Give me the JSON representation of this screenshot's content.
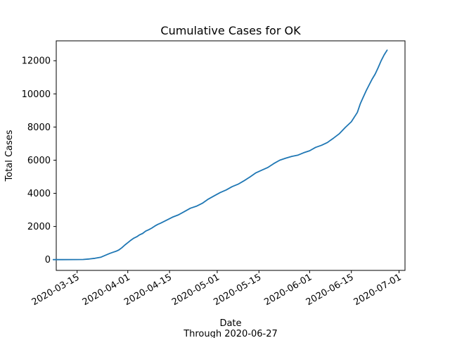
{
  "chart_data": {
    "type": "line",
    "title": "Cumulative Cases for OK",
    "xlabel": "Date",
    "xlabel_sub": "Through 2020-06-27",
    "ylabel": "Total Cases",
    "xlim": [
      "2020-03-08",
      "2020-07-03"
    ],
    "ylim": [
      -650,
      13200
    ],
    "x_ticks": [
      "2020-03-15",
      "2020-04-01",
      "2020-04-15",
      "2020-05-01",
      "2020-05-15",
      "2020-06-01",
      "2020-06-15",
      "2020-07-01"
    ],
    "y_ticks": [
      0,
      2000,
      4000,
      6000,
      8000,
      10000,
      12000
    ],
    "grid": false,
    "line_color": "#1f77b4",
    "series": [
      {
        "x": [
          "2020-03-07",
          "2020-03-10",
          "2020-03-14",
          "2020-03-17",
          "2020-03-19",
          "2020-03-21",
          "2020-03-23",
          "2020-03-25",
          "2020-03-26",
          "2020-03-27",
          "2020-03-28",
          "2020-03-29",
          "2020-03-30",
          "2020-03-31",
          "2020-04-01",
          "2020-04-02",
          "2020-04-03",
          "2020-04-04",
          "2020-04-05",
          "2020-04-06",
          "2020-04-07",
          "2020-04-08",
          "2020-04-09",
          "2020-04-10",
          "2020-04-11",
          "2020-04-12",
          "2020-04-14",
          "2020-04-16",
          "2020-04-18",
          "2020-04-20",
          "2020-04-22",
          "2020-04-24",
          "2020-04-26",
          "2020-04-28",
          "2020-04-30",
          "2020-05-02",
          "2020-05-04",
          "2020-05-06",
          "2020-05-08",
          "2020-05-10",
          "2020-05-12",
          "2020-05-14",
          "2020-05-16",
          "2020-05-18",
          "2020-05-20",
          "2020-05-22",
          "2020-05-24",
          "2020-05-26",
          "2020-05-28",
          "2020-05-30",
          "2020-06-01",
          "2020-06-03",
          "2020-06-05",
          "2020-06-07",
          "2020-06-08",
          "2020-06-09",
          "2020-06-11",
          "2020-06-13",
          "2020-06-15",
          "2020-06-17",
          "2020-06-18",
          "2020-06-19",
          "2020-06-20",
          "2020-06-21",
          "2020-06-22",
          "2020-06-23",
          "2020-06-24",
          "2020-06-25",
          "2020-06-26",
          "2020-06-27"
        ],
        "values": [
          1,
          2,
          3,
          10,
          40,
          80,
          150,
          300,
          380,
          440,
          500,
          580,
          720,
          880,
          1020,
          1170,
          1290,
          1380,
          1500,
          1580,
          1720,
          1800,
          1900,
          2020,
          2120,
          2200,
          2380,
          2560,
          2700,
          2900,
          3100,
          3220,
          3400,
          3650,
          3850,
          4050,
          4200,
          4400,
          4550,
          4760,
          4990,
          5240,
          5400,
          5560,
          5800,
          6000,
          6120,
          6230,
          6300,
          6450,
          6570,
          6770,
          6900,
          7070,
          7200,
          7330,
          7600,
          7980,
          8320,
          8880,
          9400,
          9800,
          10200,
          10550,
          10900,
          11200,
          11580,
          12000,
          12350,
          12640
        ]
      }
    ]
  }
}
